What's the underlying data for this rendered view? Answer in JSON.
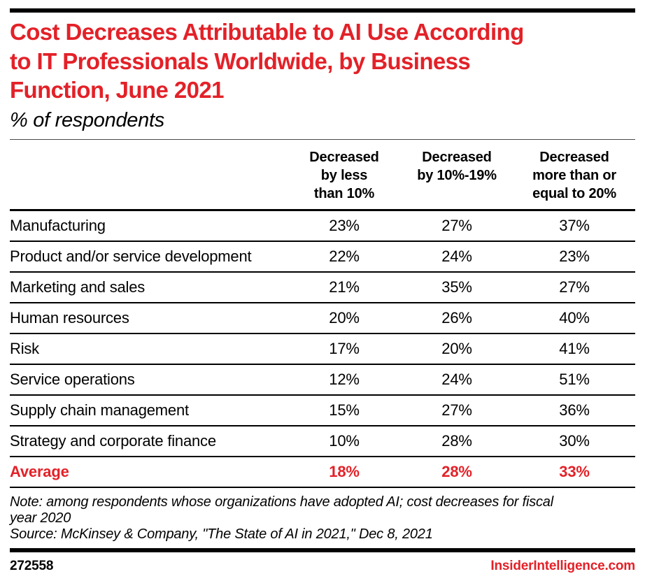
{
  "colors": {
    "accent_red": "#e32128",
    "bar_black": "#000000"
  },
  "header": {
    "title_lines": [
      "Cost Decreases Attributable to AI Use According",
      "to IT Professionals Worldwide, by Business",
      "Function, June 2021"
    ],
    "subtitle": "% of respondents"
  },
  "table": {
    "headers": [
      {
        "lines": [
          "Decreased",
          "by less",
          "than 10%"
        ]
      },
      {
        "lines": [
          "Decreased",
          "by 10%-19%"
        ]
      },
      {
        "lines": [
          "Decreased",
          "more than or",
          "equal to 20%"
        ]
      }
    ],
    "rows": [
      {
        "label": "Manufacturing",
        "values": [
          "23%",
          "27%",
          "37%"
        ]
      },
      {
        "label": "Product and/or service development",
        "values": [
          "22%",
          "24%",
          "23%"
        ]
      },
      {
        "label": "Marketing and sales",
        "values": [
          "21%",
          "35%",
          "27%"
        ]
      },
      {
        "label": "Human resources",
        "values": [
          "20%",
          "26%",
          "40%"
        ]
      },
      {
        "label": "Risk",
        "values": [
          "17%",
          "20%",
          "41%"
        ]
      },
      {
        "label": "Service operations",
        "values": [
          "12%",
          "24%",
          "51%"
        ]
      },
      {
        "label": "Supply chain management",
        "values": [
          "15%",
          "27%",
          "36%"
        ]
      },
      {
        "label": "Strategy and corporate finance",
        "values": [
          "10%",
          "28%",
          "30%"
        ]
      }
    ],
    "average": {
      "label": "Average",
      "values": [
        "18%",
        "28%",
        "33%"
      ]
    }
  },
  "footnotes": {
    "note_lines": [
      "Note: among respondents whose organizations have adopted AI; cost decreases for fiscal",
      "year 2020"
    ],
    "source": "Source: McKinsey & Company, \"The State of AI in 2021,\" Dec 8, 2021"
  },
  "footer": {
    "chart_id": "272558",
    "brand": "InsiderIntelligence.com"
  },
  "chart_data": {
    "type": "table",
    "title": "Cost Decreases Attributable to AI Use According to IT Professionals Worldwide, by Business Function, June 2021",
    "subtitle": "% of respondents",
    "unit": "%",
    "columns": [
      "Decreased by less than 10%",
      "Decreased by 10%-19%",
      "Decreased more than or equal to 20%"
    ],
    "rows": [
      {
        "category": "Manufacturing",
        "values": [
          23,
          27,
          37
        ]
      },
      {
        "category": "Product and/or service development",
        "values": [
          22,
          24,
          23
        ]
      },
      {
        "category": "Marketing and sales",
        "values": [
          21,
          35,
          27
        ]
      },
      {
        "category": "Human resources",
        "values": [
          20,
          26,
          40
        ]
      },
      {
        "category": "Risk",
        "values": [
          17,
          20,
          41
        ]
      },
      {
        "category": "Service operations",
        "values": [
          12,
          24,
          51
        ]
      },
      {
        "category": "Supply chain management",
        "values": [
          15,
          27,
          36
        ]
      },
      {
        "category": "Strategy and corporate finance",
        "values": [
          10,
          28,
          30
        ]
      }
    ],
    "average": {
      "category": "Average",
      "values": [
        18,
        28,
        33
      ]
    },
    "note": "Note: among respondents whose organizations have adopted AI; cost decreases for fiscal year 2020",
    "source": "Source: McKinsey & Company, \"The State of AI in 2021,\" Dec 8, 2021"
  }
}
